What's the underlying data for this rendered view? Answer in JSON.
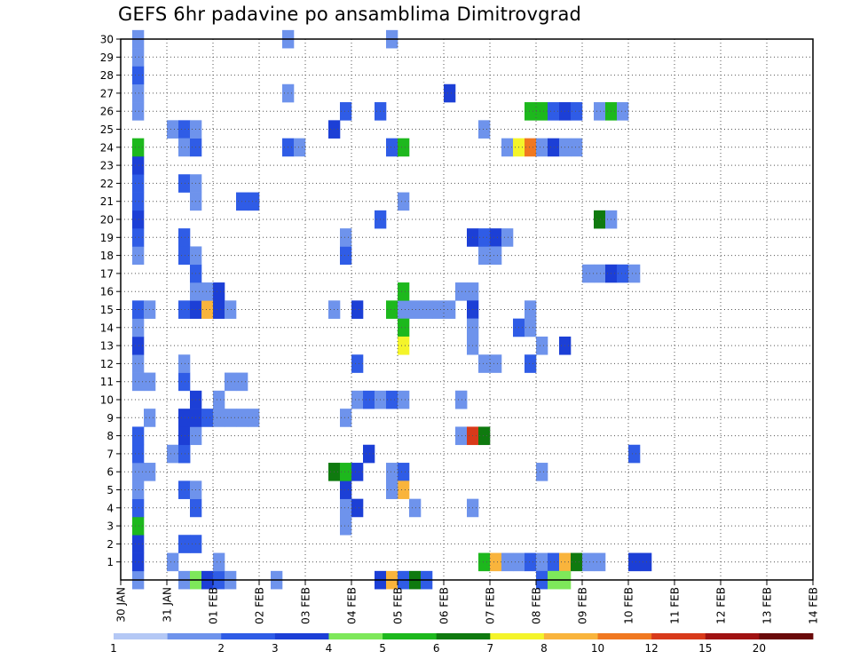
{
  "chart_data": {
    "type": "heatmap",
    "title": "GEFS 6hr padavine po ansamblima Dimitrovgrad",
    "x_labels": [
      "30 JAN",
      "31 JAN",
      "01 FEB",
      "02 FEB",
      "03 FEB",
      "04 FEB",
      "05 FEB",
      "06 FEB",
      "07 FEB",
      "08 FEB",
      "09 FEB",
      "10 FEB",
      "11 FEB",
      "12 FEB",
      "13 FEB",
      "14 FEB"
    ],
    "y_labels": [
      "1",
      "2",
      "3",
      "4",
      "5",
      "6",
      "7",
      "8",
      "9",
      "10",
      "11",
      "12",
      "13",
      "14",
      "15",
      "16",
      "17",
      "18",
      "19",
      "20",
      "21",
      "22",
      "23",
      "24",
      "25",
      "26",
      "27",
      "28",
      "29",
      "30"
    ],
    "y_range": [
      0,
      30
    ],
    "x_range": [
      0,
      60
    ],
    "grid": true,
    "color_scale": {
      "labels": [
        "1",
        "2",
        "3",
        "4",
        "5",
        "6",
        "7",
        "8",
        "10",
        "12",
        "15",
        "20"
      ],
      "colors": [
        "#b4c8f5",
        "#6e93ec",
        "#2f5ce6",
        "#1c3fd6",
        "#7ee85a",
        "#1db81d",
        "#0f7a0f",
        "#f4f42a",
        "#f9b43c",
        "#f07820",
        "#d83a1a",
        "#a01212",
        "#6a0a0a"
      ]
    },
    "cells": [
      [
        1,
        0,
        1
      ],
      [
        1,
        1,
        3
      ],
      [
        1,
        2,
        3
      ],
      [
        1,
        3,
        5
      ],
      [
        1,
        4,
        2
      ],
      [
        1,
        5,
        1
      ],
      [
        1,
        6,
        1
      ],
      [
        2,
        6,
        1
      ],
      [
        1,
        7,
        2
      ],
      [
        1,
        8,
        2
      ],
      [
        2,
        9,
        1
      ],
      [
        1,
        11,
        1
      ],
      [
        2,
        11,
        1
      ],
      [
        1,
        12,
        1
      ],
      [
        1,
        13,
        3
      ],
      [
        1,
        14,
        1
      ],
      [
        1,
        15,
        2
      ],
      [
        2,
        15,
        1
      ],
      [
        1,
        18,
        1
      ],
      [
        1,
        19,
        2
      ],
      [
        1,
        20,
        3
      ],
      [
        1,
        21,
        2
      ],
      [
        1,
        22,
        2
      ],
      [
        1,
        23,
        3
      ],
      [
        1,
        24,
        5
      ],
      [
        1,
        26,
        1
      ],
      [
        1,
        27,
        1
      ],
      [
        1,
        28,
        2
      ],
      [
        1,
        29,
        1
      ],
      [
        1,
        30,
        1
      ],
      [
        4,
        1,
        1
      ],
      [
        4,
        7,
        1
      ],
      [
        5,
        7,
        2
      ],
      [
        4,
        25,
        1
      ],
      [
        5,
        25,
        2
      ],
      [
        5,
        0,
        1
      ],
      [
        6,
        0,
        4
      ],
      [
        7,
        0,
        3
      ],
      [
        8,
        0,
        2
      ],
      [
        9,
        0,
        1
      ],
      [
        5,
        2,
        2
      ],
      [
        6,
        2,
        2
      ],
      [
        6,
        4,
        2
      ],
      [
        5,
        5,
        2
      ],
      [
        6,
        5,
        1
      ],
      [
        5,
        7,
        2
      ],
      [
        5,
        8,
        3
      ],
      [
        6,
        8,
        1
      ],
      [
        5,
        9,
        3
      ],
      [
        6,
        9,
        3
      ],
      [
        7,
        9,
        2
      ],
      [
        8,
        9,
        1
      ],
      [
        9,
        9,
        1
      ],
      [
        10,
        9,
        1
      ],
      [
        11,
        9,
        1
      ],
      [
        6,
        10,
        3
      ],
      [
        8,
        10,
        1
      ],
      [
        5,
        11,
        2
      ],
      [
        5,
        12,
        1
      ],
      [
        5,
        15,
        2
      ],
      [
        6,
        15,
        3
      ],
      [
        7,
        15,
        8
      ],
      [
        8,
        15,
        3
      ],
      [
        9,
        15,
        1
      ],
      [
        6,
        16,
        1
      ],
      [
        7,
        16,
        1
      ],
      [
        8,
        16,
        3
      ],
      [
        6,
        17,
        2
      ],
      [
        5,
        18,
        2
      ],
      [
        6,
        18,
        1
      ],
      [
        5,
        19,
        2
      ],
      [
        6,
        21,
        1
      ],
      [
        5,
        22,
        2
      ],
      [
        6,
        22,
        1
      ],
      [
        5,
        24,
        1
      ],
      [
        6,
        24,
        2
      ],
      [
        6,
        25,
        1
      ],
      [
        10,
        11,
        1
      ],
      [
        9,
        11,
        1
      ],
      [
        11,
        21,
        2
      ],
      [
        10,
        21,
        2
      ],
      [
        8,
        1,
        1
      ],
      [
        14,
        24,
        2
      ],
      [
        15,
        24,
        1
      ],
      [
        14,
        27,
        1
      ],
      [
        14,
        30,
        1
      ],
      [
        13,
        0,
        1
      ],
      [
        19,
        3,
        1
      ],
      [
        19,
        4,
        1
      ],
      [
        19,
        9,
        1
      ],
      [
        18,
        15,
        1
      ],
      [
        20,
        15,
        3
      ],
      [
        19,
        18,
        2
      ],
      [
        19,
        19,
        1
      ],
      [
        19,
        26,
        2
      ],
      [
        18,
        25,
        3
      ],
      [
        19,
        5,
        3
      ],
      [
        18,
        6,
        6
      ],
      [
        19,
        6,
        5
      ],
      [
        20,
        6,
        3
      ],
      [
        21,
        7,
        3
      ],
      [
        20,
        4,
        3
      ],
      [
        20,
        12,
        2
      ],
      [
        20,
        10,
        1
      ],
      [
        21,
        10,
        2
      ],
      [
        22,
        10,
        1
      ],
      [
        23,
        10,
        2
      ],
      [
        24,
        10,
        1
      ],
      [
        22,
        20,
        2
      ],
      [
        22,
        0,
        3
      ],
      [
        23,
        0,
        8
      ],
      [
        24,
        0,
        2
      ],
      [
        25,
        0,
        6
      ],
      [
        26,
        0,
        2
      ],
      [
        23,
        6,
        1
      ],
      [
        24,
        6,
        2
      ],
      [
        24,
        5,
        8
      ],
      [
        23,
        5,
        1
      ],
      [
        23,
        15,
        5
      ],
      [
        24,
        15,
        1
      ],
      [
        25,
        15,
        1
      ],
      [
        24,
        14,
        5
      ],
      [
        24,
        13,
        7
      ],
      [
        24,
        16,
        5
      ],
      [
        23,
        24,
        2
      ],
      [
        24,
        24,
        5
      ],
      [
        24,
        21,
        1
      ],
      [
        25,
        4,
        1
      ],
      [
        23,
        30,
        1
      ],
      [
        26,
        15,
        1
      ],
      [
        27,
        15,
        1
      ],
      [
        28,
        15,
        1
      ],
      [
        28,
        27,
        3
      ],
      [
        22,
        26,
        2
      ],
      [
        29,
        16,
        1
      ],
      [
        30,
        16,
        1
      ],
      [
        30,
        15,
        3
      ],
      [
        30,
        14,
        1
      ],
      [
        30,
        13,
        1
      ],
      [
        29,
        10,
        1
      ],
      [
        31,
        18,
        1
      ],
      [
        30,
        19,
        3
      ],
      [
        31,
        19,
        2
      ],
      [
        32,
        19,
        3
      ],
      [
        33,
        19,
        1
      ],
      [
        32,
        18,
        1
      ],
      [
        31,
        12,
        1
      ],
      [
        32,
        12,
        1
      ],
      [
        31,
        25,
        1
      ],
      [
        29,
        10,
        1
      ],
      [
        29,
        8,
        1
      ],
      [
        30,
        8,
        10
      ],
      [
        31,
        8,
        6
      ],
      [
        30,
        4,
        1
      ],
      [
        31,
        1,
        5
      ],
      [
        32,
        1,
        8
      ],
      [
        33,
        1,
        1
      ],
      [
        34,
        1,
        1
      ],
      [
        35,
        1,
        2
      ],
      [
        36,
        1,
        1
      ],
      [
        37,
        1,
        2
      ],
      [
        38,
        1,
        8
      ],
      [
        39,
        1,
        6
      ],
      [
        40,
        1,
        1
      ],
      [
        41,
        1,
        1
      ],
      [
        33,
        24,
        1
      ],
      [
        34,
        24,
        7
      ],
      [
        35,
        24,
        9
      ],
      [
        36,
        24,
        1
      ],
      [
        37,
        24,
        3
      ],
      [
        38,
        24,
        1
      ],
      [
        39,
        24,
        1
      ],
      [
        35,
        26,
        5
      ],
      [
        36,
        26,
        5
      ],
      [
        37,
        26,
        2
      ],
      [
        38,
        26,
        3
      ],
      [
        39,
        26,
        2
      ],
      [
        41,
        26,
        1
      ],
      [
        42,
        26,
        5
      ],
      [
        43,
        26,
        1
      ],
      [
        34,
        14,
        2
      ],
      [
        35,
        14,
        1
      ],
      [
        35,
        15,
        1
      ],
      [
        36,
        13,
        1
      ],
      [
        38,
        13,
        3
      ],
      [
        35,
        12,
        2
      ],
      [
        36,
        6,
        1
      ],
      [
        40,
        17,
        1
      ],
      [
        41,
        17,
        1
      ],
      [
        42,
        17,
        3
      ],
      [
        43,
        17,
        2
      ],
      [
        44,
        17,
        1
      ],
      [
        41,
        20,
        6
      ],
      [
        42,
        20,
        1
      ],
      [
        44,
        7,
        2
      ],
      [
        44,
        1,
        3
      ],
      [
        45,
        1,
        3
      ],
      [
        36,
        0,
        2
      ],
      [
        37,
        0,
        4
      ],
      [
        38,
        0,
        4
      ]
    ]
  }
}
